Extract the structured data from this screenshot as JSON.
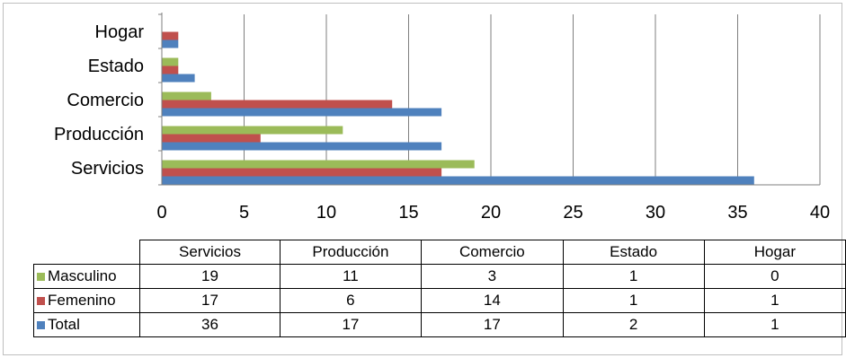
{
  "chart_data": {
    "type": "bar",
    "orientation": "horizontal",
    "categories": [
      "Servicios",
      "Producción",
      "Comercio",
      "Estado",
      "Hogar"
    ],
    "series": [
      {
        "name": "Masculino",
        "color": "#9bbb59",
        "values": [
          19,
          11,
          3,
          1,
          0
        ]
      },
      {
        "name": "Femenino",
        "color": "#c0504d",
        "values": [
          17,
          6,
          14,
          1,
          1
        ]
      },
      {
        "name": "Total",
        "color": "#4f81bd",
        "values": [
          36,
          17,
          17,
          2,
          1
        ]
      }
    ],
    "xlim": [
      0,
      40
    ],
    "xticks": [
      "0",
      "5",
      "10",
      "15",
      "20",
      "25",
      "30",
      "35",
      "40"
    ],
    "grid": "vertical",
    "data_table": true
  }
}
